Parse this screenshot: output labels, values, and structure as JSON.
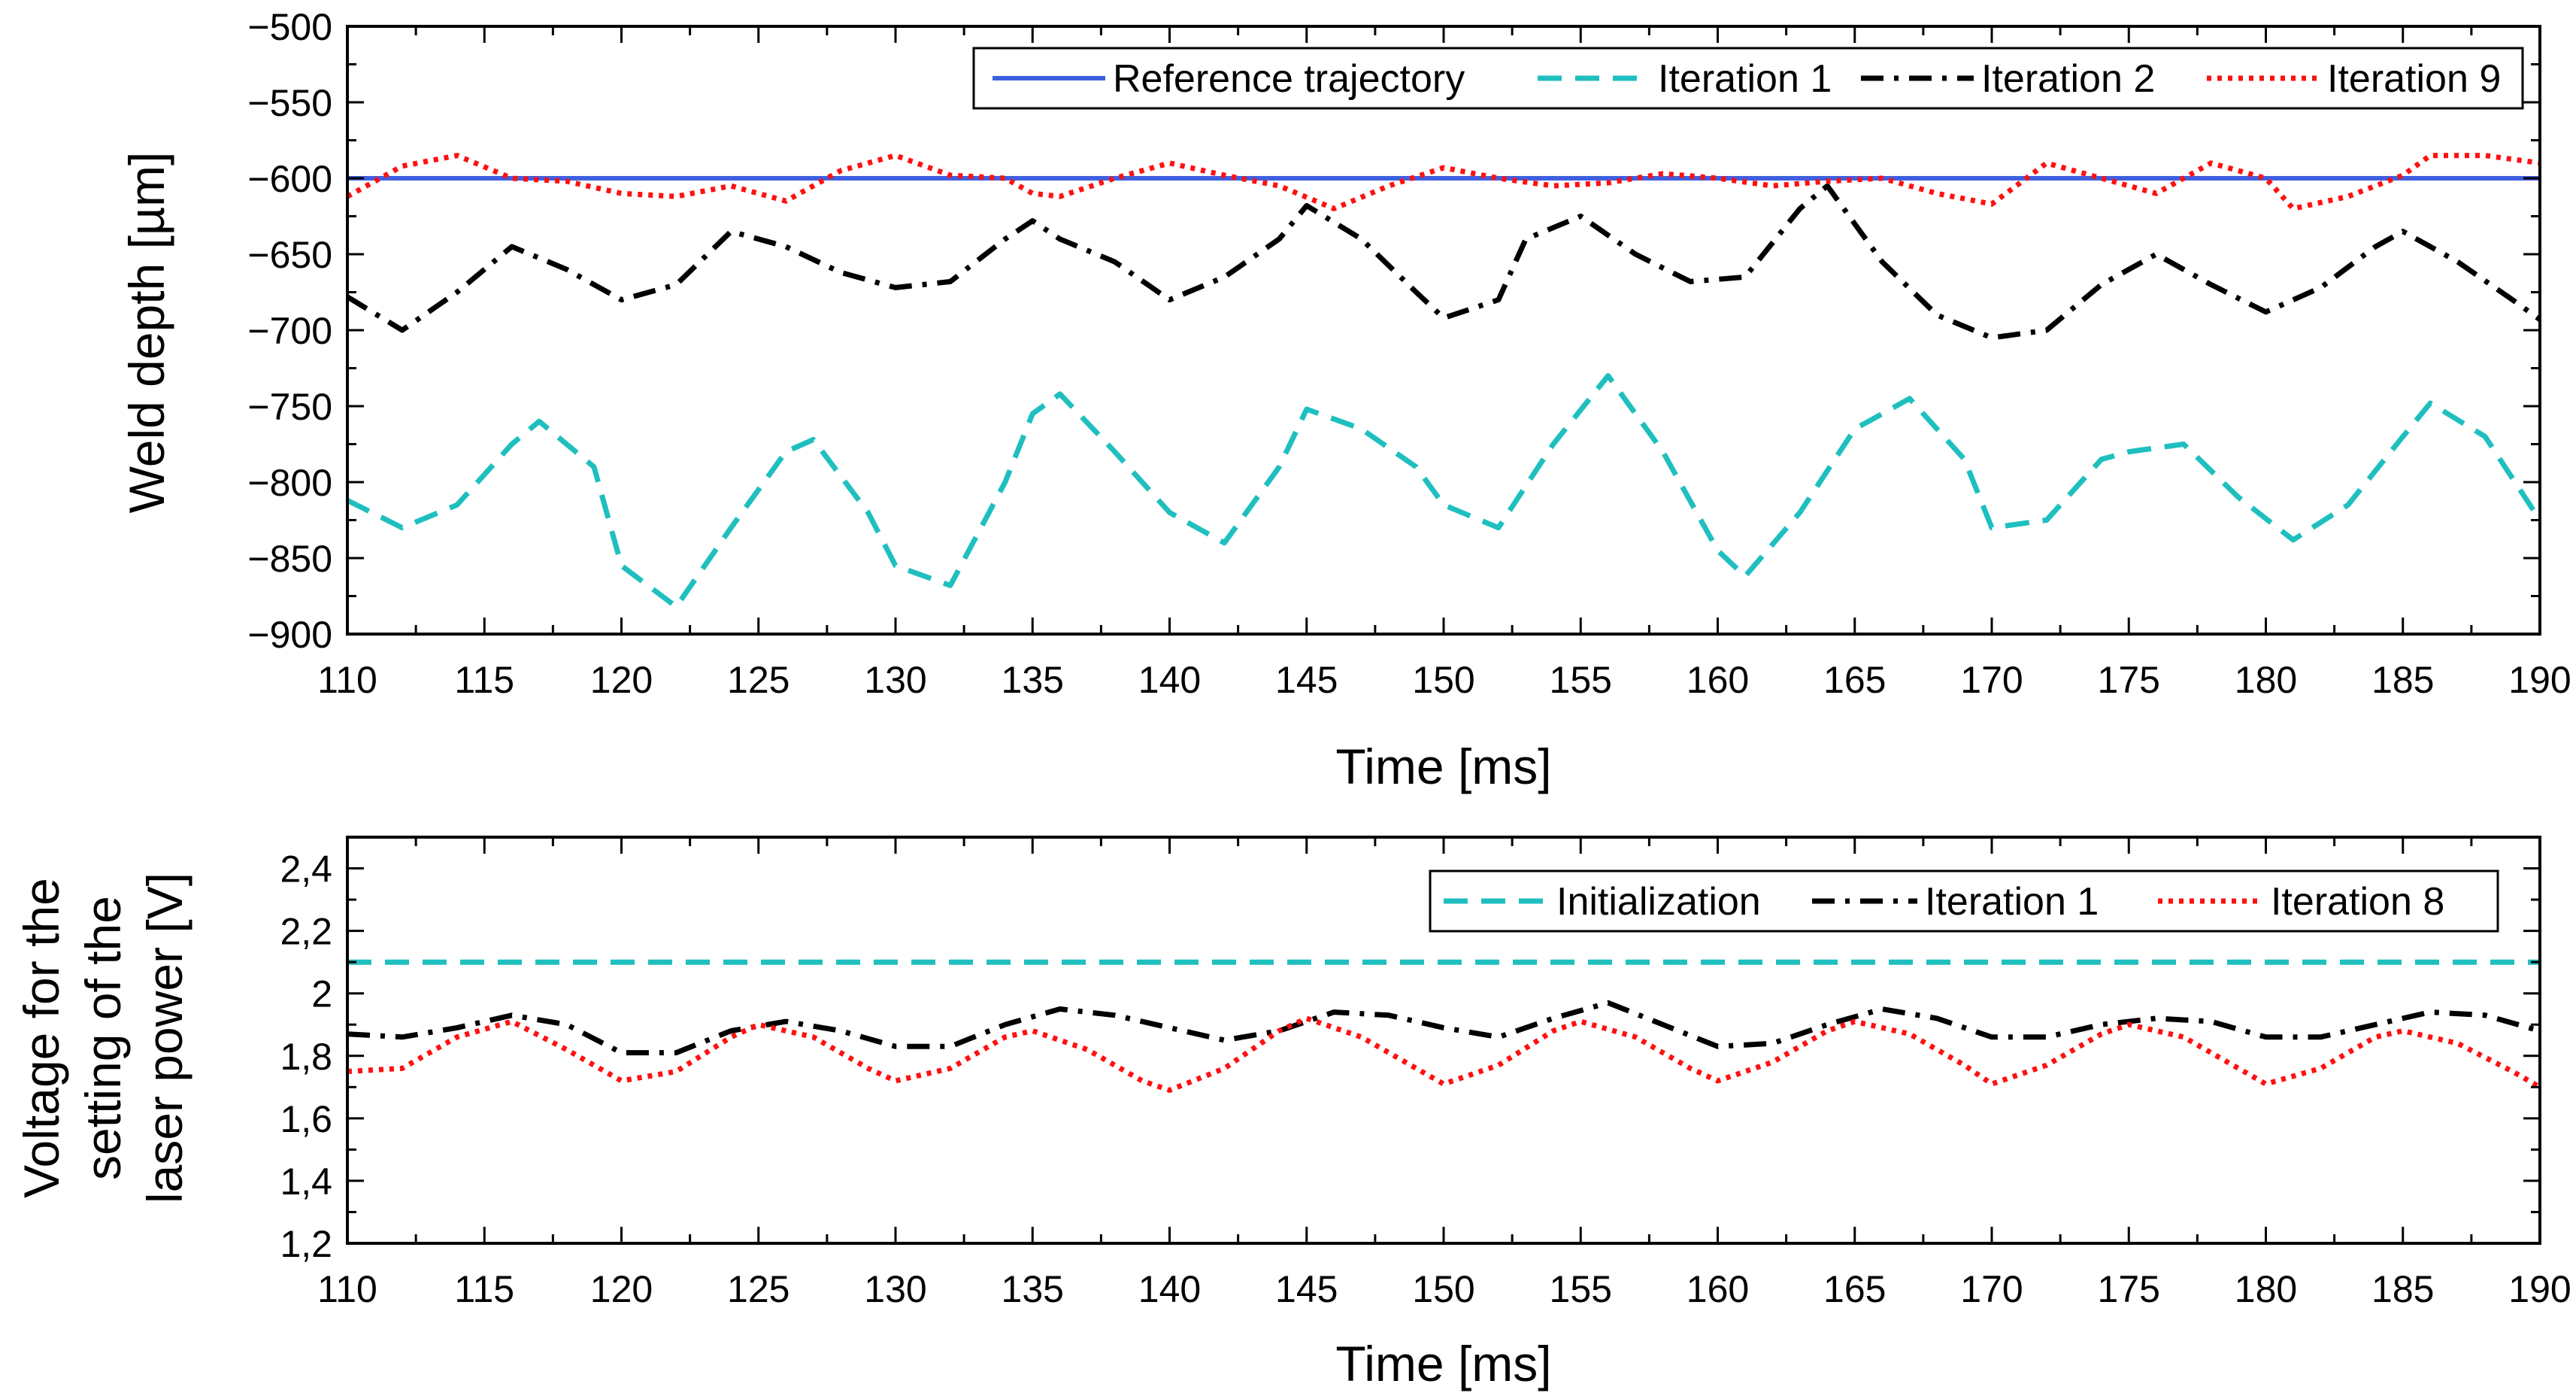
{
  "chart_data": [
    {
      "type": "line",
      "xlabel": "Time [ms]",
      "ylabel": "Weld depth [µm]",
      "xlim": [
        110,
        190
      ],
      "ylim": [
        -900,
        -500
      ],
      "x_ticks": [
        110,
        115,
        120,
        125,
        130,
        135,
        140,
        145,
        150,
        155,
        160,
        165,
        170,
        175,
        180,
        185,
        190
      ],
      "x_tick_labels": [
        "110",
        "115",
        "120",
        "125",
        "130",
        "135",
        "140",
        "145",
        "150",
        "155",
        "160",
        "165",
        "170",
        "175",
        "180",
        "185",
        "190"
      ],
      "y_ticks": [
        -500,
        -550,
        -600,
        -650,
        -700,
        -750,
        -800,
        -850,
        -900
      ],
      "y_tick_labels": [
        "−500",
        "−550",
        "−600",
        "−650",
        "−700",
        "−750",
        "−800",
        "−850",
        "−900"
      ],
      "grid": false,
      "legend_position": "top-right",
      "series": [
        {
          "name": "Reference trajectory",
          "color": "#3f5fe0",
          "style": "solid",
          "x": [
            110,
            190
          ],
          "y": [
            -600,
            -600
          ]
        },
        {
          "name": "Iteration 1",
          "color": "#1fbfbf",
          "style": "dash",
          "x": [
            110,
            112,
            114,
            116,
            117,
            119,
            120,
            122,
            124,
            126,
            127,
            129,
            130,
            132,
            134,
            135,
            136,
            138,
            140,
            142,
            144,
            145,
            147,
            149,
            150,
            152,
            154,
            156,
            158,
            160,
            161,
            163,
            165,
            167,
            169,
            170,
            172,
            174,
            175,
            177,
            179,
            181,
            183,
            185,
            186,
            188,
            190
          ],
          "y": [
            -812,
            -830,
            -815,
            -775,
            -760,
            -790,
            -855,
            -882,
            -830,
            -780,
            -772,
            -820,
            -855,
            -868,
            -800,
            -755,
            -742,
            -780,
            -820,
            -840,
            -790,
            -752,
            -765,
            -790,
            -815,
            -830,
            -775,
            -730,
            -780,
            -845,
            -862,
            -820,
            -765,
            -745,
            -785,
            -830,
            -825,
            -785,
            -780,
            -775,
            -810,
            -838,
            -815,
            -770,
            -748,
            -770,
            -825
          ]
        },
        {
          "name": "Iteration 2",
          "color": "#000000",
          "style": "dashdot",
          "x": [
            110,
            112,
            114,
            116,
            118,
            120,
            122,
            124,
            126,
            128,
            130,
            132,
            134,
            135,
            136,
            138,
            140,
            142,
            144,
            145,
            147,
            149,
            150,
            152,
            153,
            155,
            157,
            159,
            161,
            163,
            164,
            166,
            168,
            170,
            172,
            174,
            176,
            178,
            180,
            182,
            184,
            185,
            187,
            189,
            190
          ],
          "y": [
            -678,
            -700,
            -675,
            -645,
            -660,
            -680,
            -670,
            -635,
            -645,
            -662,
            -672,
            -668,
            -640,
            -628,
            -640,
            -655,
            -680,
            -665,
            -640,
            -618,
            -640,
            -675,
            -692,
            -680,
            -640,
            -625,
            -650,
            -668,
            -665,
            -620,
            -605,
            -655,
            -690,
            -705,
            -700,
            -670,
            -650,
            -670,
            -688,
            -672,
            -645,
            -635,
            -655,
            -680,
            -693
          ]
        },
        {
          "name": "Iteration 9",
          "color": "#ff1010",
          "style": "dot",
          "x": [
            110,
            112,
            114,
            116,
            118,
            120,
            122,
            124,
            126,
            128,
            130,
            132,
            134,
            135,
            136,
            138,
            140,
            142,
            144,
            146,
            148,
            150,
            152,
            154,
            156,
            158,
            160,
            162,
            164,
            166,
            168,
            170,
            172,
            174,
            176,
            178,
            180,
            181,
            183,
            185,
            186,
            188,
            190
          ],
          "y": [
            -612,
            -592,
            -585,
            -600,
            -602,
            -610,
            -612,
            -605,
            -615,
            -595,
            -585,
            -598,
            -600,
            -610,
            -612,
            -600,
            -590,
            -598,
            -605,
            -620,
            -605,
            -593,
            -600,
            -605,
            -603,
            -597,
            -600,
            -605,
            -602,
            -600,
            -610,
            -617,
            -590,
            -600,
            -610,
            -590,
            -600,
            -620,
            -612,
            -598,
            -585,
            -585,
            -590
          ]
        }
      ]
    },
    {
      "type": "line",
      "xlabel": "Time [ms]",
      "ylabel": "Voltage for the setting of the laser power [V]",
      "ylabel_lines": [
        "Voltage for the",
        "setting of the",
        "laser power [V]"
      ],
      "xlim": [
        110,
        190
      ],
      "ylim": [
        1.2,
        2.5
      ],
      "x_ticks": [
        110,
        115,
        120,
        125,
        130,
        135,
        140,
        145,
        150,
        155,
        160,
        165,
        170,
        175,
        180,
        185,
        190
      ],
      "x_tick_labels": [
        "110",
        "115",
        "120",
        "125",
        "130",
        "135",
        "140",
        "145",
        "150",
        "155",
        "160",
        "165",
        "170",
        "175",
        "180",
        "185",
        "190"
      ],
      "y_ticks": [
        1.2,
        1.4,
        1.6,
        1.8,
        2.0,
        2.2,
        2.4
      ],
      "y_tick_labels": [
        "1,2",
        "1,4",
        "1,6",
        "1,8",
        "2",
        "2,2",
        "2,4"
      ],
      "grid": false,
      "legend_position": "top-right",
      "series": [
        {
          "name": "Initialization",
          "color": "#1fbfbf",
          "style": "dash",
          "x": [
            110,
            190
          ],
          "y": [
            2.1,
            2.1
          ]
        },
        {
          "name": "Iteration 1",
          "color": "#000000",
          "style": "dashdot",
          "x": [
            110,
            112,
            114,
            116,
            118,
            120,
            122,
            124,
            126,
            128,
            130,
            132,
            134,
            136,
            138,
            140,
            142,
            144,
            146,
            148,
            150,
            152,
            154,
            156,
            158,
            160,
            162,
            164,
            166,
            168,
            170,
            172,
            174,
            176,
            178,
            180,
            182,
            184,
            186,
            188,
            190
          ],
          "y": [
            1.87,
            1.86,
            1.89,
            1.93,
            1.9,
            1.81,
            1.81,
            1.88,
            1.91,
            1.88,
            1.83,
            1.83,
            1.9,
            1.95,
            1.93,
            1.89,
            1.85,
            1.88,
            1.94,
            1.93,
            1.89,
            1.86,
            1.92,
            1.97,
            1.9,
            1.83,
            1.84,
            1.9,
            1.95,
            1.92,
            1.86,
            1.86,
            1.9,
            1.92,
            1.91,
            1.86,
            1.86,
            1.9,
            1.94,
            1.93,
            1.88
          ]
        },
        {
          "name": "Iteration 8",
          "color": "#ff1010",
          "style": "dot",
          "x": [
            110,
            112,
            114,
            116,
            118,
            120,
            122,
            124,
            125,
            127,
            129,
            130,
            132,
            134,
            135,
            137,
            139,
            140,
            142,
            144,
            145,
            147,
            149,
            150,
            152,
            154,
            155,
            157,
            159,
            160,
            162,
            164,
            165,
            167,
            169,
            170,
            172,
            174,
            175,
            177,
            179,
            180,
            182,
            184,
            185,
            187,
            189,
            190
          ],
          "y": [
            1.75,
            1.76,
            1.86,
            1.91,
            1.82,
            1.72,
            1.75,
            1.86,
            1.9,
            1.86,
            1.76,
            1.72,
            1.76,
            1.86,
            1.88,
            1.82,
            1.72,
            1.69,
            1.76,
            1.88,
            1.92,
            1.86,
            1.76,
            1.71,
            1.77,
            1.88,
            1.91,
            1.86,
            1.76,
            1.72,
            1.78,
            1.88,
            1.91,
            1.87,
            1.77,
            1.71,
            1.77,
            1.87,
            1.9,
            1.86,
            1.76,
            1.71,
            1.76,
            1.86,
            1.88,
            1.84,
            1.75,
            1.7
          ]
        }
      ]
    }
  ]
}
